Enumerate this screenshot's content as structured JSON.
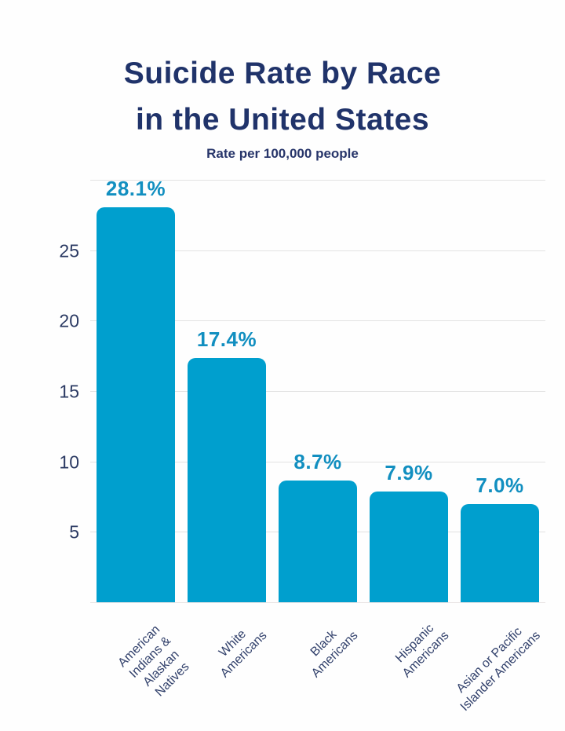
{
  "chart_data": {
    "type": "bar",
    "title_lines": [
      "Suicide Rate by Race",
      "in the United States"
    ],
    "subtitle": "Rate per 100,000 people",
    "categories": [
      "American Indians &\nAlaskan Natives",
      "White\nAmericans",
      "Black\nAmericans",
      "Hispanic\nAmericans",
      "Asian or Pacific\nIslander Americans"
    ],
    "values": [
      28.1,
      17.4,
      8.7,
      7.9,
      7.0
    ],
    "value_labels": [
      "28.1%",
      "17.4%",
      "8.7%",
      "7.9%",
      "7.0%"
    ],
    "xlabel": "",
    "ylabel": "",
    "ylim": [
      0,
      30
    ],
    "yticks": [
      5,
      10,
      15,
      20,
      25
    ],
    "gridline_values": [
      5,
      10,
      15,
      20,
      25,
      30
    ],
    "grid": true,
    "legend": "none"
  },
  "colors": {
    "background": "#fefefe",
    "bar": "#009fce",
    "value_label": "#128fc0",
    "title": "#20336a",
    "subtitle": "#27356a",
    "tick_label": "#2b3a63",
    "x_label": "#31406b",
    "gridline": "#e2e2e2"
  }
}
